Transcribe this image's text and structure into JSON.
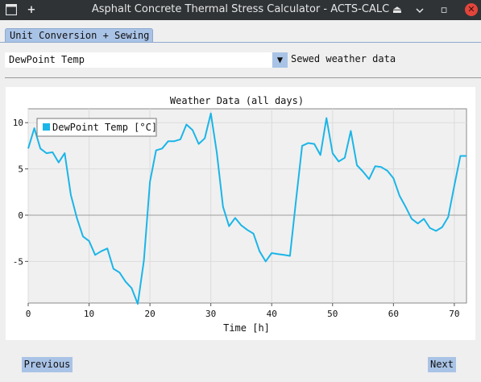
{
  "window": {
    "title": "Asphalt Concrete Thermal Stress Calculator - ACTS-CALC",
    "plus_glyph": "+",
    "eject_glyph": "⏏",
    "restore_glyph": "▫",
    "close_glyph": "✕"
  },
  "tabs": [
    {
      "label": "Unit Conversion + Sewing",
      "active": true
    }
  ],
  "controls": {
    "variable_select": {
      "value": "DewPoint Temp"
    },
    "dropdown_arrow": "▼",
    "status_label": "Sewed weather data"
  },
  "chart_data": {
    "type": "line",
    "title": "Weather Data (all days)",
    "xlabel": "Time [h]",
    "ylabel": "",
    "xlim": [
      0,
      72
    ],
    "ylim": [
      -9.5,
      11.5
    ],
    "x_ticks": [
      0,
      10,
      20,
      30,
      40,
      50,
      60,
      70
    ],
    "y_ticks": [
      10,
      5,
      0,
      -5
    ],
    "grid": true,
    "legend_position": "top-left",
    "series": [
      {
        "name": "DewPoint Temp [°C]",
        "color": "#1bb5e8",
        "x": [
          0,
          1,
          2,
          3,
          4,
          5,
          6,
          7,
          8,
          9,
          10,
          11,
          12,
          13,
          14,
          15,
          16,
          17,
          18,
          19,
          20,
          21,
          22,
          23,
          24,
          25,
          26,
          27,
          28,
          29,
          30,
          31,
          32,
          33,
          34,
          35,
          36,
          37,
          38,
          39,
          40,
          41,
          42,
          43,
          44,
          45,
          46,
          47,
          48,
          49,
          50,
          51,
          52,
          53,
          54,
          55,
          56,
          57,
          58,
          59,
          60,
          61,
          62,
          63,
          64,
          65,
          66,
          67,
          68,
          69,
          70,
          71,
          72
        ],
        "values": [
          7.2,
          9.4,
          7.2,
          6.7,
          6.8,
          5.7,
          6.7,
          2.2,
          -0.3,
          -2.3,
          -2.8,
          -4.3,
          -3.9,
          -3.6,
          -5.8,
          -6.2,
          -7.2,
          -7.9,
          -9.6,
          -4.9,
          3.6,
          7.0,
          7.2,
          8.0,
          8.0,
          8.2,
          9.8,
          9.2,
          7.7,
          8.3,
          11.0,
          6.7,
          0.9,
          -1.2,
          -0.3,
          -1.1,
          -1.6,
          -2.0,
          -3.9,
          -5.0,
          -4.1,
          -4.2,
          -4.3,
          -4.4,
          1.6,
          7.5,
          7.8,
          7.7,
          6.5,
          10.5,
          6.7,
          5.8,
          6.2,
          9.1,
          5.4,
          4.7,
          3.9,
          5.3,
          5.2,
          4.8,
          4.0,
          2.1,
          0.9,
          -0.4,
          -0.9,
          -0.4,
          -1.4,
          -1.7,
          -1.3,
          -0.2,
          3.2,
          6.4,
          6.4
        ]
      }
    ]
  },
  "footer": {
    "previous_label": "Previous",
    "next_label": "Next"
  }
}
